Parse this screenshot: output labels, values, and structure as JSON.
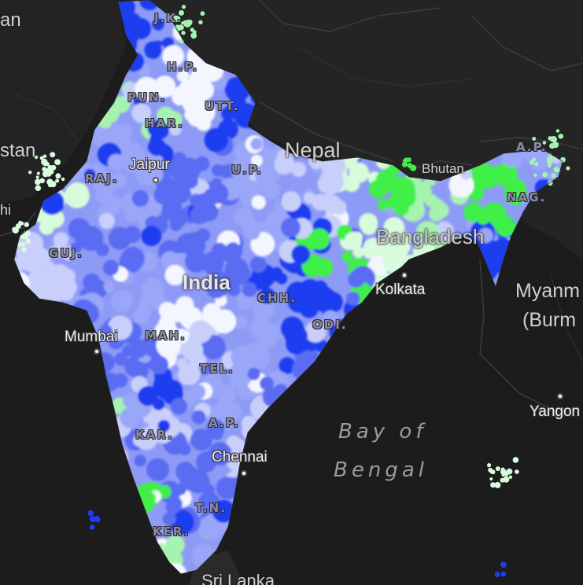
{
  "map": {
    "countries": [
      "stan",
      "Nepal",
      "Bhutan",
      "Bangladesh",
      "Myanmar (Burma)",
      "India",
      "Sri Lanka",
      "an",
      "hi"
    ],
    "myanmar_line1": "Myanm",
    "myanmar_line2": "(Burm",
    "states": [
      "J.K.",
      "H.P.",
      "PUN.",
      "UTT.",
      "HAR.",
      "RAJ.",
      "U.P.",
      "GUJ.",
      "CHH.",
      "MAH.",
      "ODI.",
      "TEL.",
      "A.P.",
      "KAR.",
      "T.N.",
      "KER.",
      "A.P.",
      "NAG."
    ],
    "cities": [
      "Jaipur",
      "Mumbai",
      "Kolkata",
      "Chennai",
      "Yangon"
    ],
    "water": {
      "line1": "Bay of",
      "line2": "Bengal"
    },
    "palette": {
      "dark_blue": "#1f3cf0",
      "mid_blue": "#5a6cf2",
      "light_blue": "#9aa6f7",
      "pale_lavender": "#c9cffb",
      "white": "#f4f6ff",
      "bright_green": "#40f04a",
      "light_green": "#a6f2b0",
      "pale_green": "#d8fbdc",
      "background": "#1c1c1c"
    }
  }
}
